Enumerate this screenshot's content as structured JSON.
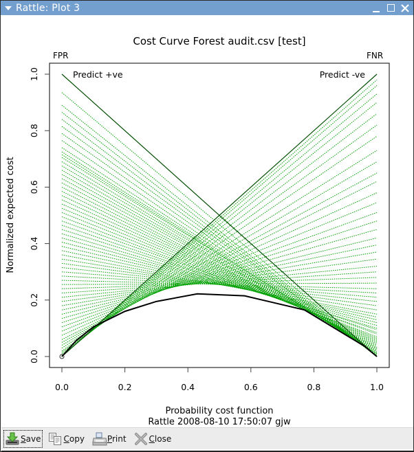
{
  "window": {
    "title": "Rattle: Plot 3",
    "controls": [
      "minimize",
      "maximize",
      "close"
    ]
  },
  "toolbar": {
    "buttons": [
      {
        "label": "Save",
        "mnemonic": "S",
        "rest": "ave",
        "icon": "save-icon"
      },
      {
        "label": "Copy",
        "mnemonic": "C",
        "rest": "opy",
        "icon": "copy-icon"
      },
      {
        "label": "Print",
        "mnemonic": "P",
        "rest": "rint",
        "icon": "print-icon"
      },
      {
        "label": "Close",
        "mnemonic": "C",
        "rest": "lose",
        "icon": "close-icon"
      }
    ]
  },
  "chart_data": {
    "type": "line",
    "title": "Cost Curve Forest audit.csv [test]",
    "xlabel": "Probability cost function",
    "ylabel": "Normalized expected cost",
    "subtitle": "Rattle 2008-08-10 17:50:07 gjw",
    "xlim": [
      0,
      1
    ],
    "ylim": [
      0,
      1
    ],
    "xticks": [
      "0.0",
      "0.2",
      "0.4",
      "0.6",
      "0.8",
      "1.0"
    ],
    "yticks": [
      "0.0",
      "0.2",
      "0.4",
      "0.6",
      "0.8",
      "1.0"
    ],
    "grid": false,
    "corner_labels": {
      "left": "FPR",
      "right": "FNR"
    },
    "annotations": [
      {
        "text": "Predict +ve",
        "x": 0.03,
        "y": 0.98
      },
      {
        "text": "Predict -ve",
        "x": 0.97,
        "y": 0.98
      }
    ],
    "trivial_lines": [
      {
        "name": "Predict +ve",
        "x": [
          0,
          1
        ],
        "y": [
          1,
          0
        ],
        "color": "#004d00"
      },
      {
        "name": "Predict -ve",
        "x": [
          0,
          1
        ],
        "y": [
          0,
          1
        ],
        "color": "#004d00"
      }
    ],
    "threshold_lines_color": "#00a000",
    "threshold_lines": [
      [
        0.935,
        0.0
      ],
      [
        0.89,
        0.0
      ],
      [
        0.865,
        0.0
      ],
      [
        0.84,
        0.0
      ],
      [
        0.815,
        0.005
      ],
      [
        0.79,
        0.005
      ],
      [
        0.765,
        0.005
      ],
      [
        0.74,
        0.01
      ],
      [
        0.725,
        0.01
      ],
      [
        0.715,
        0.01
      ],
      [
        0.705,
        0.015
      ],
      [
        0.69,
        0.015
      ],
      [
        0.675,
        0.02
      ],
      [
        0.66,
        0.02
      ],
      [
        0.645,
        0.025
      ],
      [
        0.63,
        0.03
      ],
      [
        0.615,
        0.03
      ],
      [
        0.6,
        0.035
      ],
      [
        0.585,
        0.04
      ],
      [
        0.57,
        0.045
      ],
      [
        0.555,
        0.05
      ],
      [
        0.54,
        0.055
      ],
      [
        0.525,
        0.06
      ],
      [
        0.51,
        0.065
      ],
      [
        0.495,
        0.07
      ],
      [
        0.48,
        0.08
      ],
      [
        0.465,
        0.085
      ],
      [
        0.45,
        0.095
      ],
      [
        0.435,
        0.1
      ],
      [
        0.42,
        0.11
      ],
      [
        0.405,
        0.12
      ],
      [
        0.39,
        0.13
      ],
      [
        0.375,
        0.14
      ],
      [
        0.36,
        0.15
      ],
      [
        0.345,
        0.165
      ],
      [
        0.33,
        0.18
      ],
      [
        0.315,
        0.195
      ],
      [
        0.3,
        0.21
      ],
      [
        0.285,
        0.225
      ],
      [
        0.27,
        0.24
      ],
      [
        0.255,
        0.26
      ],
      [
        0.24,
        0.28
      ],
      [
        0.225,
        0.3
      ],
      [
        0.21,
        0.32
      ],
      [
        0.195,
        0.345
      ],
      [
        0.18,
        0.37
      ],
      [
        0.165,
        0.395
      ],
      [
        0.15,
        0.42
      ],
      [
        0.135,
        0.45
      ],
      [
        0.12,
        0.48
      ],
      [
        0.105,
        0.51
      ],
      [
        0.09,
        0.545
      ],
      [
        0.075,
        0.58
      ],
      [
        0.06,
        0.62
      ],
      [
        0.05,
        0.65
      ],
      [
        0.04,
        0.69
      ],
      [
        0.03,
        0.73
      ],
      [
        0.02,
        0.78
      ],
      [
        0.015,
        0.82
      ],
      [
        0.01,
        0.86
      ],
      [
        0.005,
        0.9
      ],
      [
        0.003,
        0.93
      ],
      [
        0.001,
        0.96
      ],
      [
        0.0,
        0.98
      ]
    ],
    "lower_envelope": {
      "x": [
        0.0,
        0.045,
        0.1,
        0.2,
        0.3,
        0.43,
        0.58,
        0.77,
        0.96,
        1.0
      ],
      "y": [
        0.0,
        0.056,
        0.105,
        0.16,
        0.195,
        0.222,
        0.215,
        0.165,
        0.037,
        0.0
      ],
      "color": "#000000"
    }
  }
}
